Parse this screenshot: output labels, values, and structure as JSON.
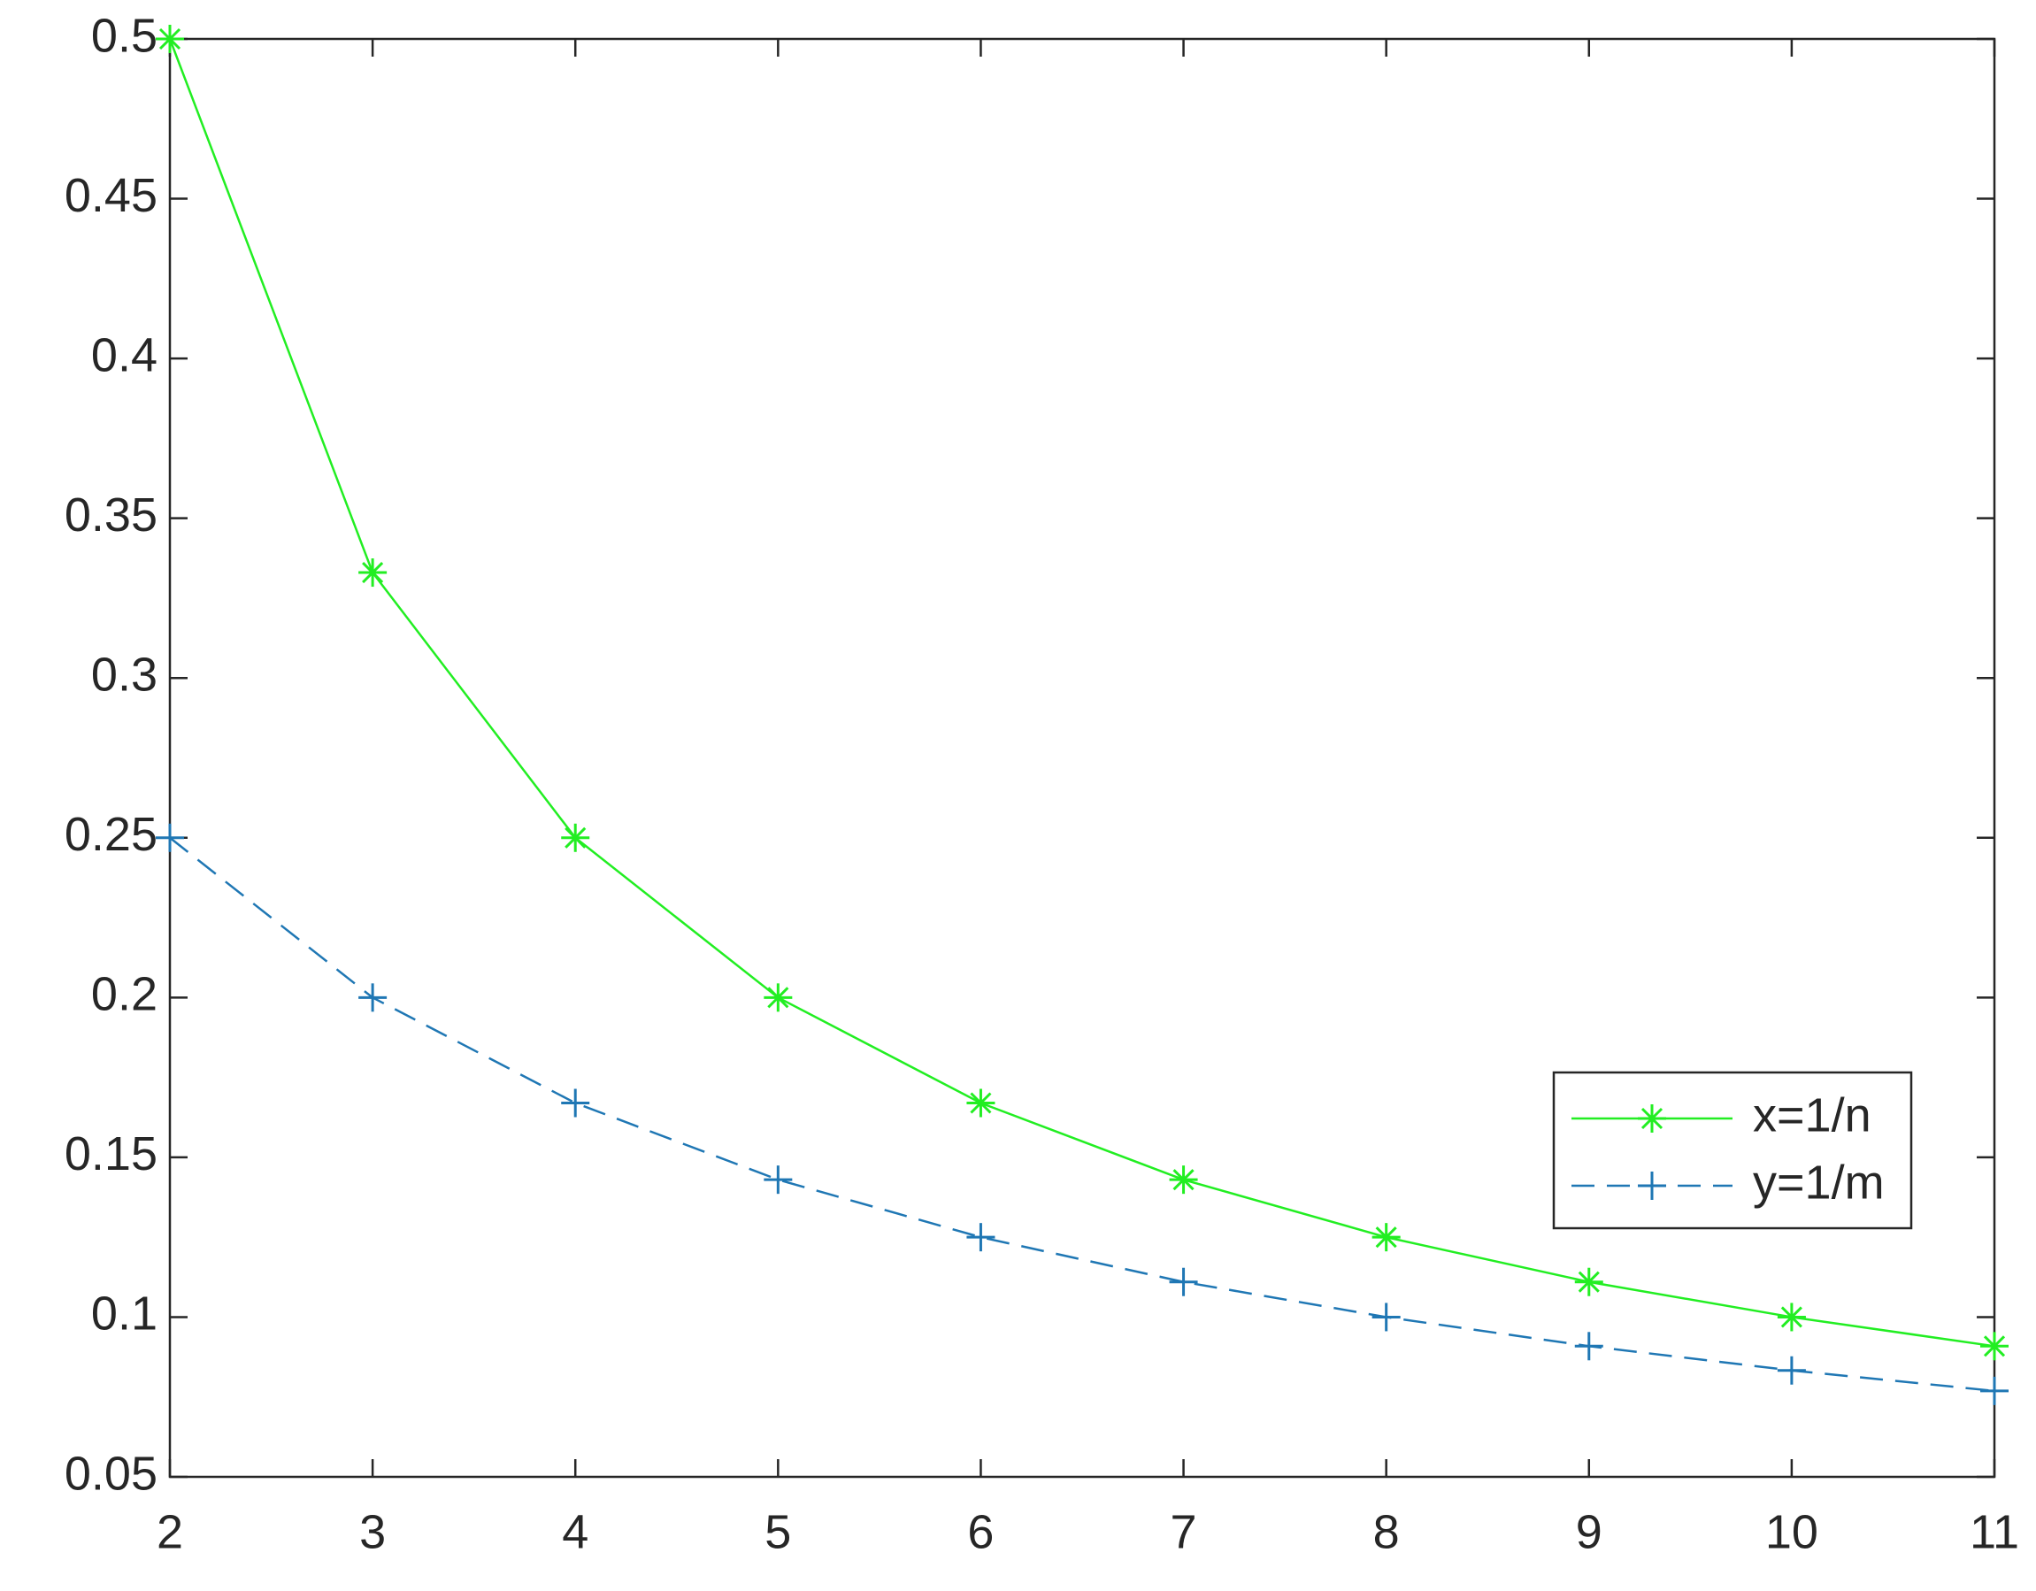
{
  "chart_data": {
    "type": "line",
    "x": [
      2,
      3,
      4,
      5,
      6,
      7,
      8,
      9,
      10,
      11
    ],
    "series": [
      {
        "name": "x=1/n",
        "color": "#22ee22",
        "marker": "*",
        "line_style": "solid",
        "values": [
          0.5,
          0.333,
          0.25,
          0.2,
          0.167,
          0.143,
          0.125,
          0.111,
          0.1,
          0.0909
        ]
      },
      {
        "name": "y=1/m",
        "color": "#1f77b4",
        "marker": "+",
        "line_style": "dashed",
        "values": [
          0.25,
          0.2,
          0.167,
          0.143,
          0.125,
          0.111,
          0.1,
          0.0909,
          0.0833,
          0.0769
        ]
      }
    ],
    "xlim": [
      2,
      11
    ],
    "xticks": [
      2,
      3,
      4,
      5,
      6,
      7,
      8,
      9,
      10,
      11
    ],
    "ylim": [
      0.05,
      0.5
    ],
    "yticks": [
      0.05,
      0.1,
      0.15,
      0.2,
      0.25,
      0.3,
      0.35,
      0.4,
      0.45,
      0.5
    ],
    "grid": false,
    "legend_position": "lower right"
  }
}
